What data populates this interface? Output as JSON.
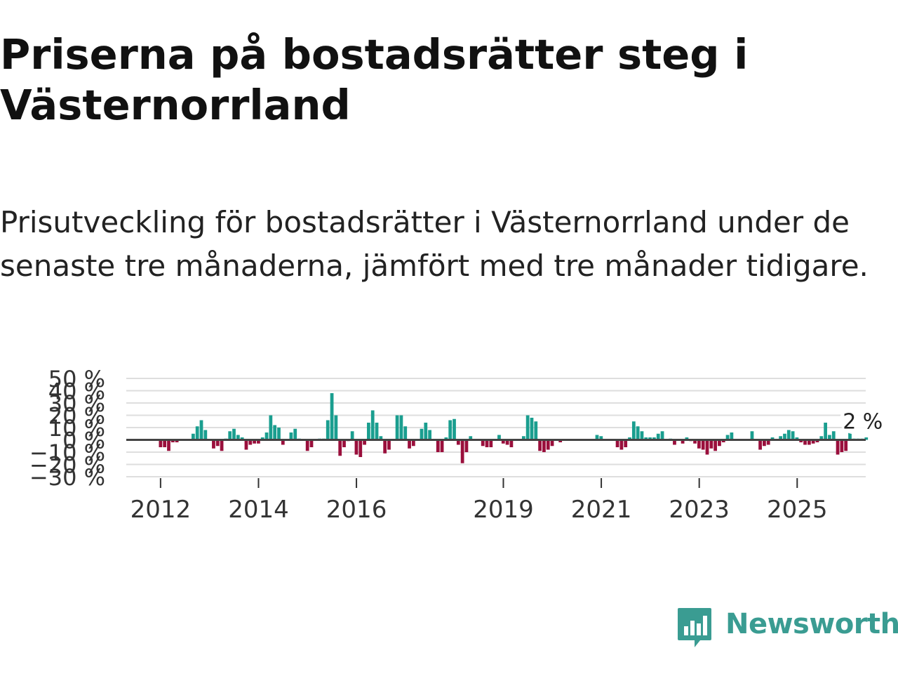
{
  "header": {
    "title": "Priserna på bostadsrätter steg i Västernorrland",
    "subtitle": "Prisutveckling för bostadsrätter i Västernorrland under de senaste tre månaderna, jämfört med tre månader tidigare."
  },
  "brand": {
    "name": "Newsworthy",
    "color": "#3a9c92"
  },
  "colors": {
    "positive": "#1a9e8f",
    "negative": "#9a0f3c",
    "grid": "#dedede",
    "zero": "#444444"
  },
  "chart_data": {
    "type": "bar",
    "title": "",
    "xlabel": "",
    "ylabel": "",
    "y_ticks": [
      "50 %",
      "40 %",
      "30 %",
      "20 %",
      "10 %",
      "0 %",
      "−10 %",
      "−20 %",
      "−30 %"
    ],
    "y_tick_values": [
      50,
      40,
      30,
      20,
      10,
      0,
      -10,
      -20,
      -30
    ],
    "ylim": [
      -30,
      50
    ],
    "x_ticks": [
      "2012",
      "2014",
      "2016",
      "2019",
      "2021",
      "2023",
      "2025"
    ],
    "x_tick_positions": [
      2012,
      2014,
      2016,
      2019,
      2021,
      2023,
      2025
    ],
    "xlim": [
      2011.3,
      2026.4
    ],
    "start": 2012,
    "step": 0.0833,
    "last_label": "2 %",
    "values": [
      -6,
      -6,
      -9,
      -2,
      -2,
      0,
      0,
      0,
      5,
      11,
      16,
      8,
      0,
      -7,
      -5,
      -9,
      1,
      7,
      9,
      4,
      2,
      -8,
      -4,
      -3,
      -3,
      2,
      6,
      20,
      12,
      10,
      -4,
      0,
      6,
      9,
      1,
      0,
      -9,
      -6,
      0,
      1,
      1,
      16,
      38,
      20,
      -13,
      -6,
      -1,
      7,
      -12,
      -14,
      -4,
      14,
      24,
      14,
      3,
      -11,
      -8,
      0,
      20,
      20,
      11,
      -7,
      -5,
      0,
      9,
      14,
      8,
      0,
      -10,
      -10,
      2,
      16,
      17,
      -4,
      -19,
      -10,
      3,
      0,
      0,
      -5,
      -6,
      -6,
      0,
      4,
      -3,
      -4,
      -6,
      0,
      0,
      3,
      20,
      18,
      15,
      -9,
      -10,
      -8,
      -5,
      0,
      -2,
      0,
      0,
      0,
      0,
      0,
      0,
      0,
      0,
      4,
      3,
      0,
      0,
      0,
      -6,
      -8,
      -6,
      2,
      15,
      11,
      7,
      2,
      2,
      2,
      5,
      7,
      0,
      1,
      -4,
      0,
      -3,
      2,
      -1,
      -3,
      -7,
      -8,
      -12,
      -7,
      -9,
      -5,
      -2,
      4,
      6,
      0,
      0,
      0,
      0,
      7,
      0,
      -8,
      -5,
      -4,
      2,
      0,
      3,
      5,
      8,
      7,
      2,
      -2,
      -4,
      -4,
      -3,
      -2,
      3,
      14,
      4,
      7,
      -12,
      -10,
      -9,
      6,
      1,
      1,
      1,
      2
    ]
  }
}
